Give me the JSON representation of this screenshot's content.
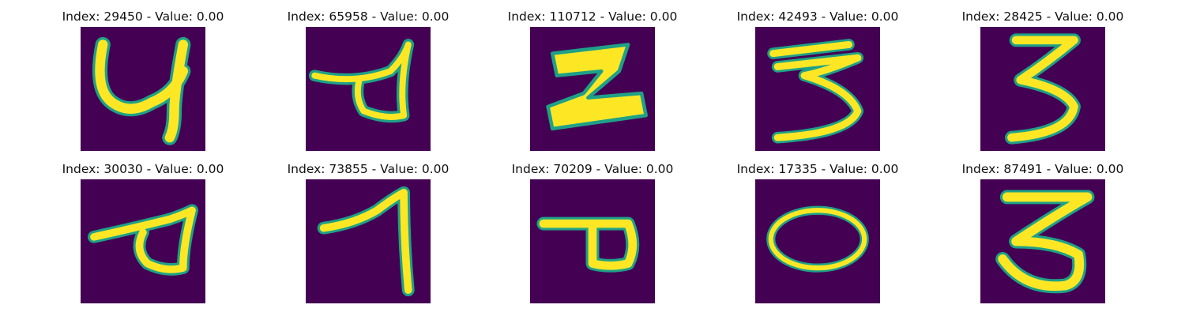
{
  "colors": {
    "background": "#440154",
    "stroke": "#fde725",
    "edge": "#1fa187"
  },
  "panels": [
    {
      "title": "Index: 29450 - Value: 0.00",
      "digit_icon": "handwritten-digit-4-icon"
    },
    {
      "title": "Index: 65958 - Value: 0.00",
      "digit_icon": "handwritten-digit-4-icon"
    },
    {
      "title": "Index: 110712 - Value: 0.00",
      "digit_icon": "handwritten-digit-2-icon"
    },
    {
      "title": "Index: 42493 - Value: 0.00",
      "digit_icon": "handwritten-digit-3-icon"
    },
    {
      "title": "Index: 28425 - Value: 0.00",
      "digit_icon": "handwritten-digit-3-icon"
    },
    {
      "title": "Index: 30030 - Value: 0.00",
      "digit_icon": "handwritten-digit-4-icon"
    },
    {
      "title": "Index: 73855 - Value: 0.00",
      "digit_icon": "handwritten-digit-1-icon"
    },
    {
      "title": "Index: 70209 - Value: 0.00",
      "digit_icon": "handwritten-digit-4-icon"
    },
    {
      "title": "Index: 17335 - Value: 0.00",
      "digit_icon": "handwritten-digit-0-icon"
    },
    {
      "title": "Index: 87491 - Value: 0.00",
      "digit_icon": "handwritten-digit-3-icon"
    }
  ]
}
